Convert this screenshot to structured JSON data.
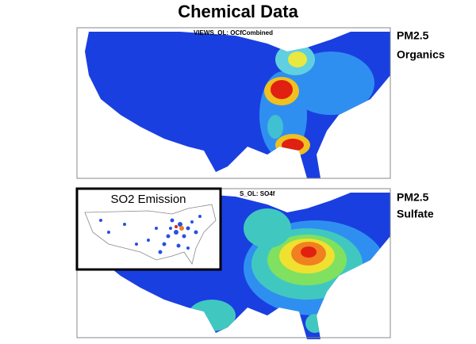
{
  "header": {
    "title": "Chemical Data"
  },
  "maps": [
    {
      "title": "VIEWS_OL: OCfCombined",
      "label_line1": "PM2.5",
      "label_line2": "Organics"
    },
    {
      "title": "S_OL: SO4f",
      "label_line1": "PM2.5",
      "label_line2": "Sulfate",
      "inset_title": "SO2 Emission"
    }
  ]
}
